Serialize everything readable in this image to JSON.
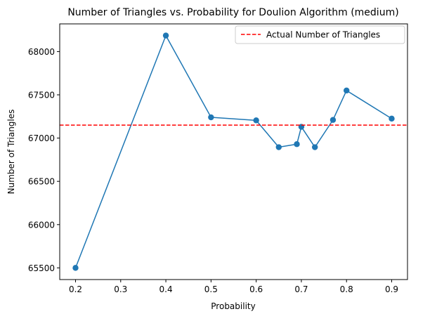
{
  "chart_data": {
    "type": "line",
    "title": "Number of Triangles vs. Probability for Doulion Algorithm (medium)",
    "xlabel": "Probability",
    "ylabel": "Number of Triangles",
    "xlim": [
      0.165,
      0.935
    ],
    "ylim": [
      65365,
      68320
    ],
    "xticks": [
      0.2,
      0.3,
      0.4,
      0.5,
      0.6,
      0.7,
      0.8,
      0.9
    ],
    "xtick_labels": [
      "0.2",
      "0.3",
      "0.4",
      "0.5",
      "0.6",
      "0.7",
      "0.8",
      "0.9"
    ],
    "yticks": [
      65500,
      66000,
      66500,
      67000,
      67500,
      68000
    ],
    "ytick_labels": [
      "65500",
      "66000",
      "66500",
      "67000",
      "67500",
      "68000"
    ],
    "grid": false,
    "legend_position": "top-right",
    "series": [
      {
        "color": "#1f77b4",
        "marker": "circle",
        "x": [
          0.2,
          0.4,
          0.5,
          0.6,
          0.65,
          0.69,
          0.7,
          0.73,
          0.77,
          0.8,
          0.9
        ],
        "y": [
          65500,
          68185,
          67240,
          67205,
          66895,
          66930,
          67130,
          66895,
          67210,
          67550,
          67225
        ]
      }
    ],
    "reference_lines": [
      {
        "name": "Actual Number of Triangles",
        "orientation": "horizontal",
        "y": 67150,
        "color": "#ff0000",
        "style": "dashed"
      }
    ]
  }
}
